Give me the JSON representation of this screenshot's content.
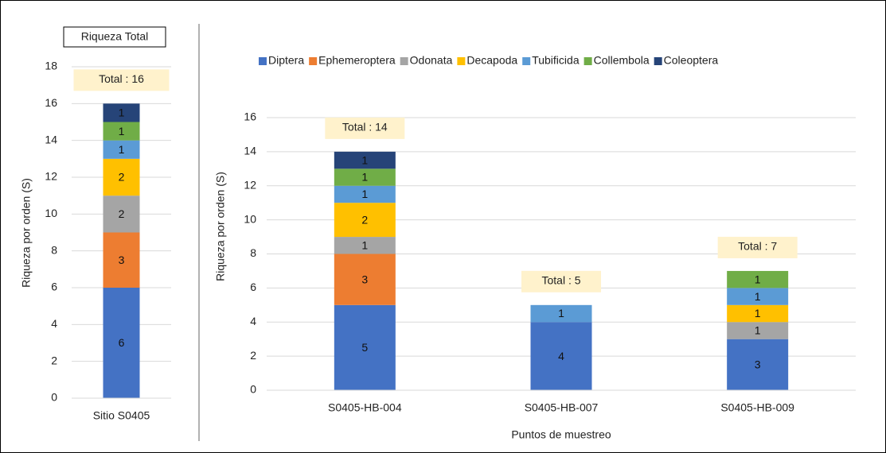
{
  "chart_data": [
    {
      "type": "stacked_bar",
      "title": "Riqueza Total",
      "y_label": "Riqueza por orden (S)",
      "categories": [
        "Sitio S0405"
      ],
      "series": [
        {
          "color": "#4472c4",
          "values": [
            6
          ]
        },
        {
          "color": "#ed7d31",
          "values": [
            3
          ]
        },
        {
          "color": "#a5a5a5",
          "values": [
            2
          ]
        },
        {
          "color": "#ffc000",
          "values": [
            2
          ]
        },
        {
          "color": "#5b9bd5",
          "values": [
            1
          ]
        },
        {
          "color": "#70ad47",
          "values": [
            1
          ]
        },
        {
          "color": "#264478",
          "values": [
            1
          ]
        }
      ],
      "annotations": [
        "Total : 16"
      ],
      "ylim": [
        0,
        18
      ],
      "yticks": [
        0,
        2,
        4,
        6,
        8,
        10,
        12,
        14,
        16,
        18
      ],
      "grid": true
    },
    {
      "type": "stacked_bar",
      "x_label": "Puntos de muestreo",
      "y_label": "Riqueza por orden (S)",
      "categories": [
        "S0405-HB-004",
        "S0405-HB-007",
        "S0405-HB-009"
      ],
      "series": [
        {
          "name": "Diptera",
          "color": "#4472c4",
          "values": [
            5,
            4,
            3
          ]
        },
        {
          "name": "Ephemeroptera",
          "color": "#ed7d31",
          "values": [
            3,
            null,
            null
          ]
        },
        {
          "name": "Odonata",
          "color": "#a5a5a5",
          "values": [
            1,
            null,
            1
          ]
        },
        {
          "name": "Decapoda",
          "color": "#ffc000",
          "values": [
            2,
            null,
            1
          ]
        },
        {
          "name": "Tubificida",
          "color": "#5b9bd5",
          "values": [
            1,
            1,
            1
          ]
        },
        {
          "name": "Collembola",
          "color": "#70ad47",
          "values": [
            1,
            null,
            1
          ]
        },
        {
          "name": "Coleoptera",
          "color": "#264478",
          "values": [
            1,
            null,
            null
          ]
        }
      ],
      "annotations": [
        "Total : 14",
        "Total : 5",
        "Total : 7"
      ],
      "ylim": [
        0,
        16
      ],
      "yticks": [
        0,
        2,
        4,
        6,
        8,
        10,
        12,
        14,
        16
      ],
      "grid": true,
      "legend": "top"
    }
  ]
}
